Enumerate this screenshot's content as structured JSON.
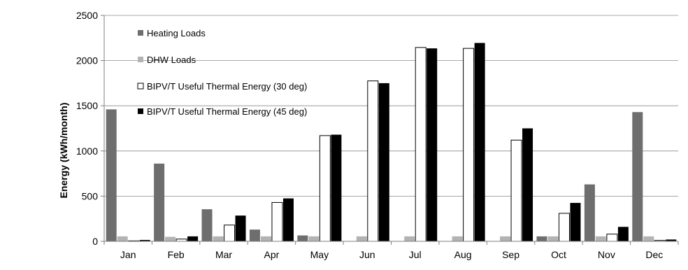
{
  "chart_data": {
    "type": "bar",
    "title": "",
    "xlabel": "",
    "ylabel": "Energy (kWh/month)",
    "ylim": [
      0,
      2500
    ],
    "yticks": [
      0,
      500,
      1000,
      1500,
      2000,
      2500
    ],
    "grid": "horizontal",
    "legend_position": "top-left",
    "categories": [
      "Jan",
      "Feb",
      "Mar",
      "Apr",
      "May",
      "Jun",
      "Jul",
      "Aug",
      "Sep",
      "Oct",
      "Nov",
      "Dec"
    ],
    "series": [
      {
        "name": "Heating Loads",
        "color": "#6e6e6e",
        "values": [
          1460,
          860,
          355,
          130,
          65,
          0,
          0,
          0,
          0,
          55,
          630,
          1430
        ]
      },
      {
        "name": "DHW Loads",
        "color": "#b3b3b3",
        "values": [
          55,
          50,
          55,
          55,
          55,
          55,
          55,
          55,
          55,
          55,
          55,
          55
        ]
      },
      {
        "name": "BIPV/T Useful Thermal Energy (30 deg)",
        "color": "#ffffff",
        "values": [
          5,
          25,
          180,
          430,
          1170,
          1775,
          2145,
          2135,
          1120,
          310,
          80,
          10
        ]
      },
      {
        "name": "BIPV/T Useful Thermal Energy (45 deg)",
        "color": "#000000",
        "values": [
          15,
          55,
          285,
          475,
          1180,
          1750,
          2135,
          2195,
          1250,
          425,
          160,
          20
        ]
      }
    ]
  }
}
